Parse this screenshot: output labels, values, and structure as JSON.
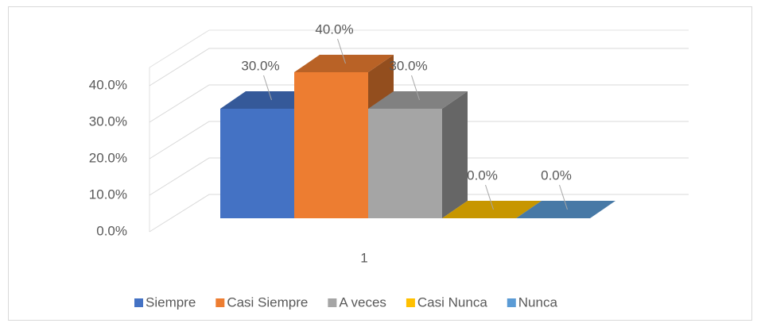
{
  "chart_data": {
    "type": "bar3d",
    "categories": [
      "1"
    ],
    "series": [
      {
        "name": "Siempre",
        "color": "#4472c4",
        "values": [
          30
        ],
        "value_labels": [
          "30.0%"
        ]
      },
      {
        "name": "Casi Siempre",
        "color": "#ed7d31",
        "values": [
          40
        ],
        "value_labels": [
          "40.0%"
        ]
      },
      {
        "name": "A veces",
        "color": "#a5a5a5",
        "values": [
          30
        ],
        "value_labels": [
          "30.0%"
        ]
      },
      {
        "name": "Casi Nunca",
        "color": "#ffc000",
        "values": [
          0
        ],
        "value_labels": [
          "0.0%"
        ]
      },
      {
        "name": "Nunca",
        "color": "#5b9bd5",
        "values": [
          0
        ],
        "value_labels": [
          "0.0%"
        ]
      }
    ],
    "ylim": [
      0,
      45
    ],
    "yticks": [
      {
        "value": 0,
        "label": "0.0%"
      },
      {
        "value": 10,
        "label": "10.0%"
      },
      {
        "value": 20,
        "label": "20.0%"
      },
      {
        "value": 30,
        "label": "30.0%"
      },
      {
        "value": 40,
        "label": "40.0%"
      }
    ],
    "grid": true,
    "legend": "bottom"
  }
}
